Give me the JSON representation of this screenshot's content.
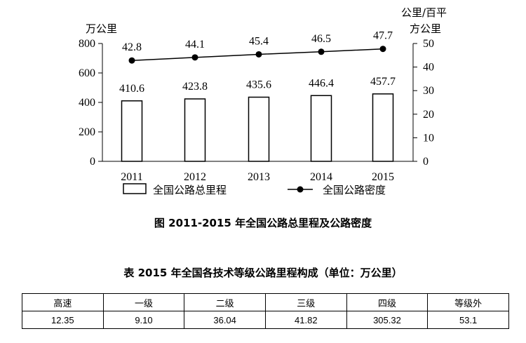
{
  "chart_data": {
    "type": "bar+line",
    "categories": [
      "2011",
      "2012",
      "2013",
      "2014",
      "2015"
    ],
    "left_axis": {
      "unit": "万公里",
      "ylim": [
        0,
        800
      ],
      "ticks": [
        "0",
        "200",
        "400",
        "600",
        "800"
      ]
    },
    "right_axis": {
      "unit_line1": "公里/百平",
      "unit_line2": "方公里",
      "ylim": [
        0,
        50
      ],
      "ticks": [
        "0",
        "10",
        "20",
        "30",
        "40",
        "50"
      ]
    },
    "series": [
      {
        "name": "全国公路总里程",
        "kind": "bar",
        "axis": "left",
        "values": [
          410.6,
          423.8,
          435.6,
          446.4,
          457.7
        ],
        "labels": [
          "410.6",
          "423.8",
          "435.6",
          "446.4",
          "457.7"
        ]
      },
      {
        "name": "全国公路密度",
        "kind": "line",
        "axis": "right",
        "values": [
          42.8,
          44.1,
          45.4,
          46.5,
          47.7
        ],
        "labels": [
          "42.8",
          "44.1",
          "45.4",
          "46.5",
          "47.7"
        ]
      }
    ]
  },
  "figure_caption": "图 2011-2015 年全国公路总里程及公路密度",
  "table": {
    "caption": "表 2015 年全国各技术等级公路里程构成（单位：万公里）",
    "headers": [
      "高速",
      "一级",
      "二级",
      "三级",
      "四级",
      "等级外"
    ],
    "values": [
      "12.35",
      "9.10",
      "36.04",
      "41.82",
      "305.32",
      "53.1"
    ]
  }
}
